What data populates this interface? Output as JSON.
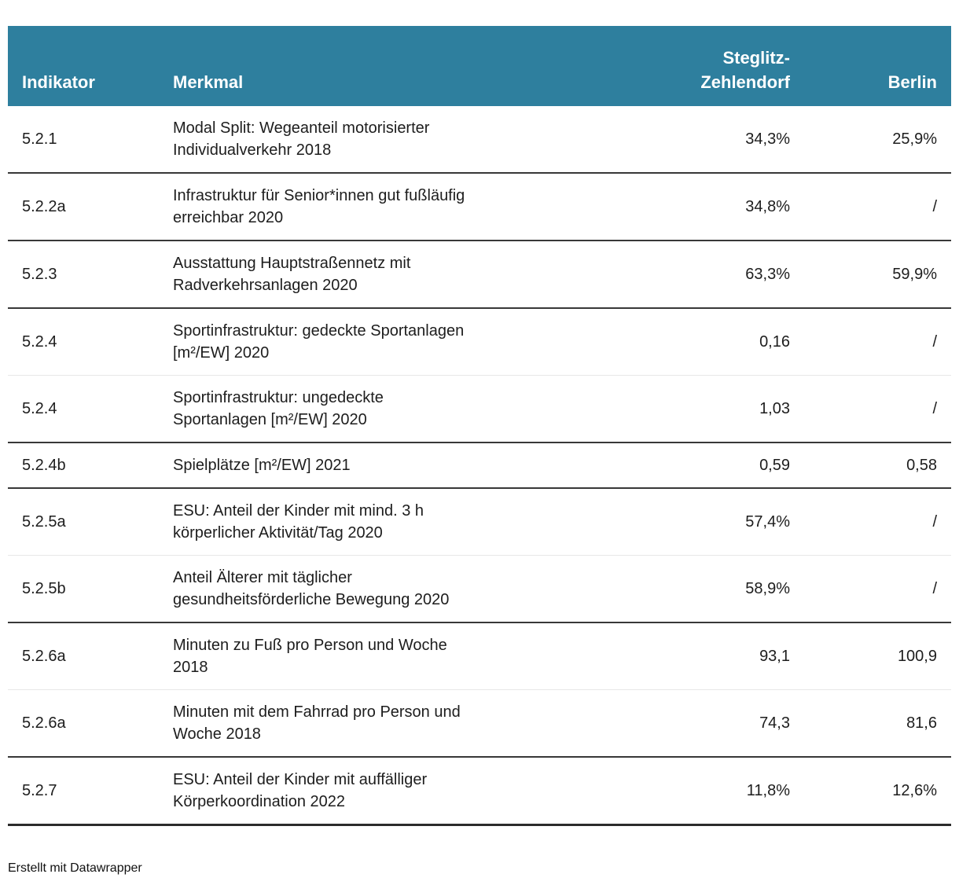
{
  "header": {
    "columns": {
      "indikator": "Indikator",
      "merkmal": "Merkmal",
      "steglitz_line1": "Steglitz-",
      "steglitz_line2": "Zehlendorf",
      "berlin": "Berlin"
    }
  },
  "rows": [
    {
      "indikator": "5.2.1",
      "merkmal": [
        "Modal Split: Wegeanteil motorisierter",
        "Individualverkehr 2018"
      ],
      "steglitz": "34,3%",
      "berlin": "25,9%"
    },
    {
      "indikator": "5.2.2a",
      "merkmal": [
        "Infrastruktur für Senior*innen gut fußläufig",
        "erreichbar 2020"
      ],
      "steglitz": "34,8%",
      "berlin": "/"
    },
    {
      "indikator": "5.2.3",
      "merkmal": [
        "Ausstattung Hauptstraßennetz mit",
        "Radverkehrsanlagen 2020"
      ],
      "steglitz": "63,3%",
      "berlin": "59,9%"
    },
    {
      "indikator": "5.2.4",
      "merkmal": [
        "Sportinfrastruktur: gedeckte Sportanlagen",
        "[m²/EW] 2020"
      ],
      "steglitz": "0,16",
      "berlin": "/"
    },
    {
      "indikator": "5.2.4",
      "merkmal": [
        "Sportinfrastruktur: ungedeckte",
        "Sportanlagen [m²/EW] 2020"
      ],
      "steglitz": "1,03",
      "berlin": "/"
    },
    {
      "indikator": "5.2.4b",
      "merkmal": [
        "Spielplätze [m²/EW] 2021"
      ],
      "steglitz": "0,59",
      "berlin": "0,58"
    },
    {
      "indikator": "5.2.5a",
      "merkmal": [
        "ESU: Anteil der Kinder mit mind. 3 h",
        "körperlicher Aktivität/Tag 2020"
      ],
      "steglitz": "57,4%",
      "berlin": "/"
    },
    {
      "indikator": "5.2.5b",
      "merkmal": [
        "Anteil Älterer mit täglicher",
        "gesundheitsförderliche Bewegung 2020"
      ],
      "steglitz": "58,9%",
      "berlin": "/"
    },
    {
      "indikator": "5.2.6a",
      "merkmal": [
        "Minuten zu Fuß pro Person und Woche",
        "2018"
      ],
      "steglitz": "93,1",
      "berlin": "100,9"
    },
    {
      "indikator": "5.2.6a",
      "merkmal": [
        "Minuten mit dem Fahrrad pro Person und",
        "Woche 2018"
      ],
      "steglitz": "74,3",
      "berlin": "81,6"
    },
    {
      "indikator": "5.2.7",
      "merkmal": [
        "ESU: Anteil der Kinder mit auffälliger",
        "Körperkoordination 2022"
      ],
      "steglitz": "11,8%",
      "berlin": "12,6%"
    }
  ],
  "footer": {
    "attribution": "Erstellt mit Datawrapper"
  },
  "colors": {
    "header_bg": "#2e7f9e",
    "header_text": "#ffffff",
    "body_text": "#1d1d1d",
    "separator_dark": "#383838",
    "separator_light": "#e7e7e7",
    "bottom_rule": "#2b2b2b"
  }
}
